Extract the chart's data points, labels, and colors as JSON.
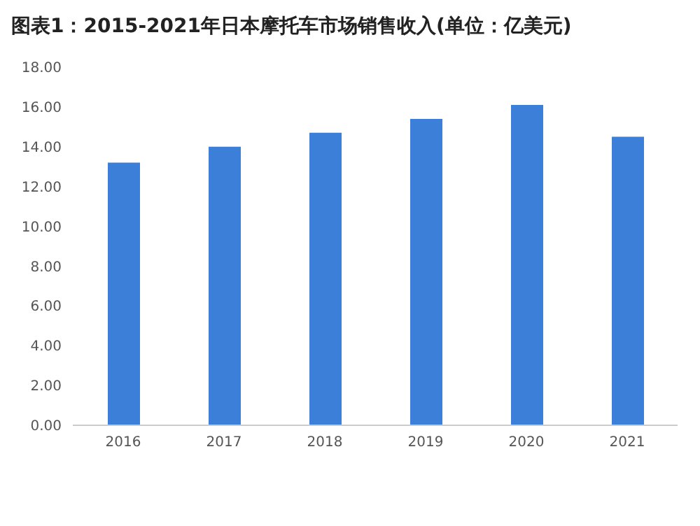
{
  "chart_data": {
    "type": "bar",
    "title": "图表1：2015-2021年日本摩托车市场销售收入(单位：亿美元)",
    "categories": [
      "2016",
      "2017",
      "2018",
      "2019",
      "2020",
      "2021"
    ],
    "values": [
      13.2,
      14.0,
      14.7,
      15.4,
      16.1,
      14.5
    ],
    "color": "#3c7fd8",
    "ylim": [
      0,
      18
    ],
    "yticks": [
      {
        "value": 0,
        "label": "0.00"
      },
      {
        "value": 2,
        "label": "2.00"
      },
      {
        "value": 4,
        "label": "4.00"
      },
      {
        "value": 6,
        "label": "6.00"
      },
      {
        "value": 8,
        "label": "8.00"
      },
      {
        "value": 10,
        "label": "10.00"
      },
      {
        "value": 12,
        "label": "12.00"
      },
      {
        "value": 14,
        "label": "14.00"
      },
      {
        "value": 16,
        "label": "16.00"
      },
      {
        "value": 18,
        "label": "18.00"
      }
    ],
    "grid": false,
    "legend": false
  }
}
